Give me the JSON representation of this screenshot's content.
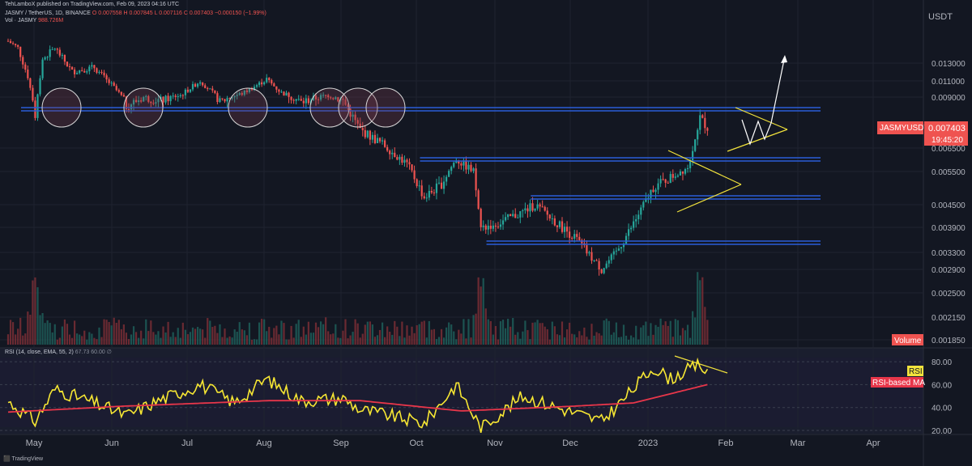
{
  "header": {
    "published": "TehLamboX published on TradingView.com, Feb 09, 2023 04:16 UTC",
    "symbol": "JASMY / TetherUS, 1D, BINANCE",
    "ohlc": {
      "o": "O 0.007558",
      "h": "H 0.007845",
      "l": "L 0.007116",
      "c": "C 0.007403",
      "chg": "−0.000150 (−1.99%)"
    },
    "volume_label": "Vol · JASMY",
    "volume_value": "988.726M"
  },
  "price_axis": {
    "currency": "USDT",
    "ticks": [
      "0.013000",
      "0.011000",
      "0.009000",
      "0.006500",
      "0.005500",
      "0.004500",
      "0.003900",
      "0.003300",
      "0.002900",
      "0.002500",
      "0.002150",
      "0.001850"
    ]
  },
  "last_price_tag": {
    "symbol": "JASMYUSDT",
    "price": "0.007403",
    "countdown": "19:45:20",
    "color": "#ef5350"
  },
  "volume_tag": {
    "label": "Volume",
    "color": "#ef5350"
  },
  "rsi": {
    "header": "RSI (14, close, EMA, 55, 2)",
    "values_text": "67.73  60.00  ∅",
    "ticks": [
      "80.00",
      "60.00",
      "40.00",
      "20.00"
    ],
    "rsi_tag": "RSI",
    "ma_tag": "RSI-based MA",
    "rsi_color": "#f7e733",
    "ma_color": "#e8364a"
  },
  "time_axis": [
    "May",
    "Jun",
    "Jul",
    "Aug",
    "Sep",
    "Oct",
    "Nov",
    "Dec",
    "2023",
    "Feb",
    "Mar",
    "Apr"
  ],
  "footer": "TradingView",
  "chart_data": {
    "type": "candlestick",
    "symbol": "JASMYUSDT",
    "x_range": [
      "2022-05-01",
      "2023-04-30"
    ],
    "candle_close_path": [
      [
        "2022-05-01",
        0.016
      ],
      [
        "2022-05-05",
        0.015
      ],
      [
        "2022-05-09",
        0.0115
      ],
      [
        "2022-05-12",
        0.008
      ],
      [
        "2022-05-15",
        0.0135
      ],
      [
        "2022-05-20",
        0.015
      ],
      [
        "2022-05-27",
        0.012
      ],
      [
        "2022-06-05",
        0.0125
      ],
      [
        "2022-06-12",
        0.0105
      ],
      [
        "2022-06-18",
        0.0085
      ],
      [
        "2022-06-25",
        0.009
      ],
      [
        "2022-07-02",
        0.0088
      ],
      [
        "2022-07-10",
        0.0092
      ],
      [
        "2022-07-18",
        0.011
      ],
      [
        "2022-07-26",
        0.0087
      ],
      [
        "2022-08-04",
        0.0094
      ],
      [
        "2022-08-14",
        0.0112
      ],
      [
        "2022-08-20",
        0.0095
      ],
      [
        "2022-08-28",
        0.0087
      ],
      [
        "2022-09-08",
        0.0092
      ],
      [
        "2022-09-14",
        0.0088
      ],
      [
        "2022-09-21",
        0.0073
      ],
      [
        "2022-10-01",
        0.0066
      ],
      [
        "2022-10-10",
        0.0058
      ],
      [
        "2022-10-17",
        0.0047
      ],
      [
        "2022-10-24",
        0.0051
      ],
      [
        "2022-10-30",
        0.006
      ],
      [
        "2022-11-06",
        0.0055
      ],
      [
        "2022-11-09",
        0.0039
      ],
      [
        "2022-11-16",
        0.004
      ],
      [
        "2022-11-26",
        0.0043
      ],
      [
        "2022-12-01",
        0.0045
      ],
      [
        "2022-12-10",
        0.004
      ],
      [
        "2022-12-18",
        0.0036
      ],
      [
        "2022-12-28",
        0.0029
      ],
      [
        "2023-01-03",
        0.0033
      ],
      [
        "2023-01-10",
        0.004
      ],
      [
        "2023-01-18",
        0.005
      ],
      [
        "2023-01-25",
        0.0053
      ],
      [
        "2023-02-01",
        0.0057
      ],
      [
        "2023-02-04",
        0.007
      ],
      [
        "2023-02-06",
        0.0079
      ],
      [
        "2023-02-09",
        0.0074
      ]
    ],
    "horizontal_levels": [
      0.0087,
      0.0065,
      0.005,
      0.0037
    ],
    "volume_spikes": [
      [
        "2022-05-12",
        "high"
      ],
      [
        "2022-11-09",
        "high"
      ],
      [
        "2023-02-06",
        "high"
      ]
    ],
    "rsi_series": [
      [
        "2022-05-01",
        45
      ],
      [
        "2022-05-12",
        28
      ],
      [
        "2022-05-20",
        56
      ],
      [
        "2022-06-05",
        44
      ],
      [
        "2022-06-18",
        33
      ],
      [
        "2022-07-01",
        46
      ],
      [
        "2022-07-18",
        60
      ],
      [
        "2022-08-01",
        44
      ],
      [
        "2022-08-14",
        65
      ],
      [
        "2022-08-28",
        46
      ],
      [
        "2022-09-14",
        48
      ],
      [
        "2022-09-21",
        38
      ],
      [
        "2022-10-01",
        34
      ],
      [
        "2022-10-17",
        26
      ],
      [
        "2022-10-30",
        60
      ],
      [
        "2022-11-09",
        22
      ],
      [
        "2022-11-26",
        50
      ],
      [
        "2022-12-10",
        40
      ],
      [
        "2022-12-28",
        28
      ],
      [
        "2023-01-05",
        45
      ],
      [
        "2023-01-18",
        75
      ],
      [
        "2023-01-25",
        65
      ],
      [
        "2023-02-06",
        78
      ],
      [
        "2023-02-09",
        68
      ]
    ],
    "rsi_ma_series": [
      [
        "2022-05-01",
        36
      ],
      [
        "2022-06-15",
        41
      ],
      [
        "2022-08-15",
        46
      ],
      [
        "2022-09-21",
        46
      ],
      [
        "2022-11-01",
        37
      ],
      [
        "2022-12-15",
        41
      ],
      [
        "2023-01-10",
        44
      ],
      [
        "2023-02-09",
        60
      ]
    ],
    "rsi_range": [
      20,
      85
    ],
    "rsi_levels": [
      80,
      60,
      40,
      20
    ],
    "circle_markers": [
      "2022-05-12",
      "2022-06-15",
      "2022-07-26",
      "2022-08-28",
      "2022-09-08",
      "2022-09-14"
    ],
    "annotations": [
      "symmetrical triangle (Jan 2023)",
      "pennant (Feb 2023)",
      "zigzag projection with arrow toward ~0.012"
    ]
  }
}
